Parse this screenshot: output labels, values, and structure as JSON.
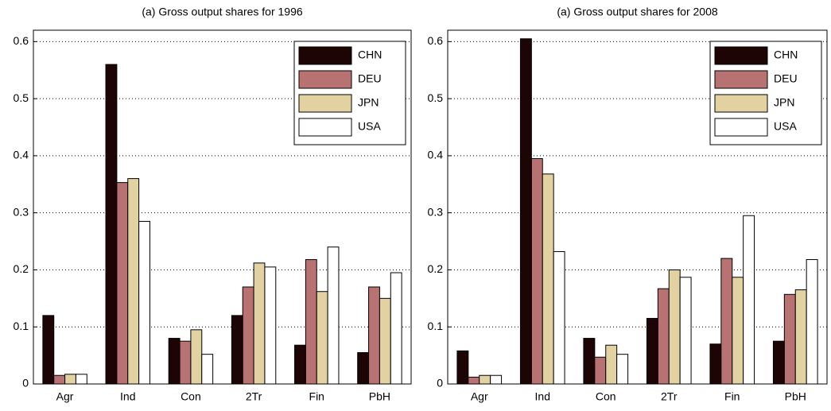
{
  "chart_data": [
    {
      "type": "bar",
      "title": "(a) Gross output shares for 1996",
      "categories": [
        "Agr",
        "Ind",
        "Con",
        "2Tr",
        "Fin",
        "PbH"
      ],
      "series": [
        {
          "name": "CHN",
          "color": "#1e0505",
          "values": [
            0.12,
            0.56,
            0.08,
            0.12,
            0.068,
            0.055
          ]
        },
        {
          "name": "DEU",
          "color": "#b87272",
          "values": [
            0.015,
            0.353,
            0.075,
            0.17,
            0.218,
            0.17
          ]
        },
        {
          "name": "JPN",
          "color": "#e2d2a2",
          "values": [
            0.017,
            0.36,
            0.095,
            0.212,
            0.162,
            0.15
          ]
        },
        {
          "name": "USA",
          "color": "#ffffff",
          "values": [
            0.017,
            0.285,
            0.052,
            0.205,
            0.24,
            0.195
          ]
        }
      ],
      "ylim": [
        0,
        0.62
      ],
      "yticks": [
        0,
        0.1,
        0.2,
        0.3,
        0.4,
        0.5,
        0.6
      ],
      "grid": true,
      "legend": "upper-right"
    },
    {
      "type": "bar",
      "title": "(a) Gross output shares for 2008",
      "categories": [
        "Agr",
        "Ind",
        "Con",
        "2Tr",
        "Fin",
        "PbH"
      ],
      "series": [
        {
          "name": "CHN",
          "color": "#1e0505",
          "values": [
            0.058,
            0.605,
            0.08,
            0.115,
            0.07,
            0.075
          ]
        },
        {
          "name": "DEU",
          "color": "#b87272",
          "values": [
            0.012,
            0.395,
            0.047,
            0.167,
            0.22,
            0.157
          ]
        },
        {
          "name": "JPN",
          "color": "#e2d2a2",
          "values": [
            0.015,
            0.368,
            0.068,
            0.2,
            0.187,
            0.165
          ]
        },
        {
          "name": "USA",
          "color": "#ffffff",
          "values": [
            0.015,
            0.232,
            0.052,
            0.187,
            0.295,
            0.218
          ]
        }
      ],
      "ylim": [
        0,
        0.62
      ],
      "yticks": [
        0,
        0.1,
        0.2,
        0.3,
        0.4,
        0.5,
        0.6
      ],
      "grid": true,
      "legend": "upper-right"
    }
  ]
}
